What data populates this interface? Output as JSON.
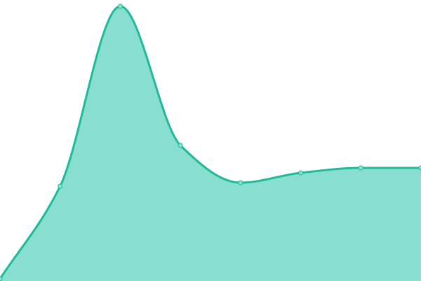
{
  "chart_data": {
    "type": "area",
    "x": [
      0,
      1,
      2,
      3,
      4,
      5,
      6,
      7
    ],
    "values": [
      3,
      135,
      391,
      193,
      140,
      154,
      161,
      161
    ],
    "ylim": [
      0,
      400
    ],
    "grid": false,
    "legend": "none",
    "title": "",
    "xlabel": "",
    "ylabel": "",
    "colors": {
      "line": "#1fba98",
      "fill": "#89dfcf",
      "point_fill": "#8ee0d1"
    }
  }
}
